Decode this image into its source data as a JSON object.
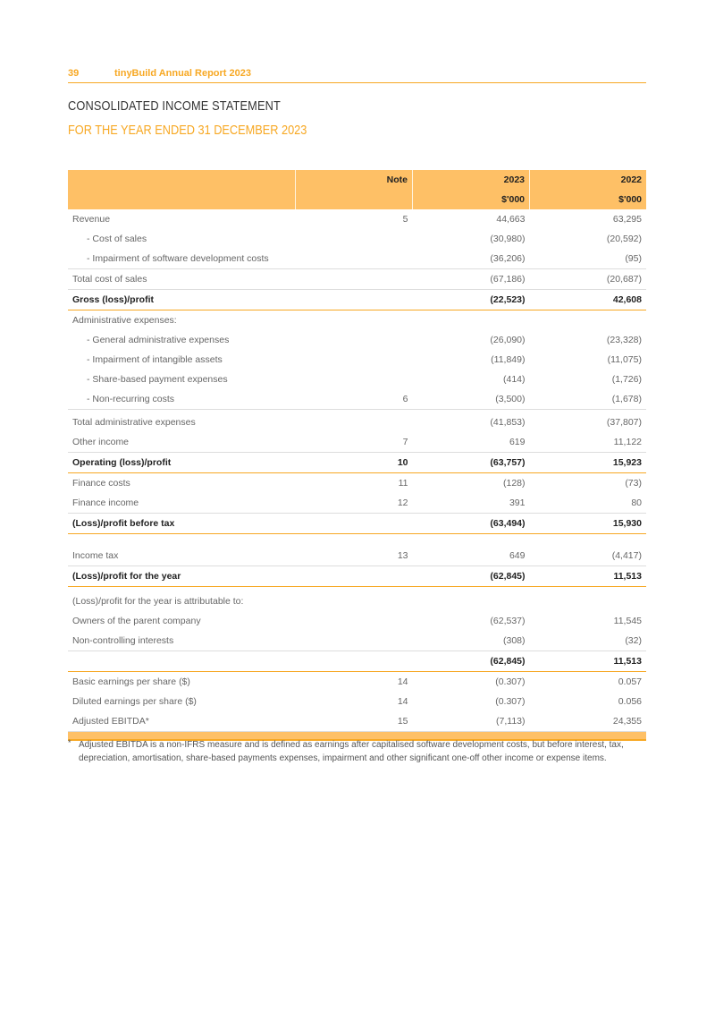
{
  "header": {
    "page_number": "39",
    "report_title": "tinyBuild Annual Report 2023",
    "accent_color": "#f7a823"
  },
  "title": "CONSOLIDATED INCOME STATEMENT",
  "subtitle": "FOR THE YEAR ENDED 31 DECEMBER 2023",
  "table": {
    "columns": {
      "note": "Note",
      "y2023": "2023",
      "y2022": "2022",
      "unit2023": "$'000",
      "unit2022": "$'000"
    },
    "rows": [
      {
        "label": "Revenue",
        "note": "5",
        "y2023": "44,663",
        "y2022": "63,295",
        "cls": ""
      },
      {
        "label": "- Cost of sales",
        "note": "",
        "y2023": "(30,980)",
        "y2022": "(20,592)",
        "cls": "indent"
      },
      {
        "label": "- Impairment of software development costs",
        "note": "",
        "y2023": "(36,206)",
        "y2022": "(95)",
        "cls": "indent"
      },
      {
        "label": "Total cost of sales",
        "note": "",
        "y2023": "(67,186)",
        "y2022": "(20,687)",
        "cls": "above"
      },
      {
        "label": "Gross (loss)/profit",
        "note": "",
        "y2023": "(22,523)",
        "y2022": "42,608",
        "cls": "bold above below"
      },
      {
        "label": "Administrative expenses:",
        "note": "",
        "y2023": "",
        "y2022": "",
        "cls": ""
      },
      {
        "label": "- General administrative expenses",
        "note": "",
        "y2023": "(26,090)",
        "y2022": "(23,328)",
        "cls": "indent"
      },
      {
        "label": "- Impairment of intangible assets",
        "note": "",
        "y2023": "(11,849)",
        "y2022": "(11,075)",
        "cls": "indent"
      },
      {
        "label": "- Share-based payment expenses",
        "note": "",
        "y2023": "(414)",
        "y2022": "(1,726)",
        "cls": "indent"
      },
      {
        "label": "- Non-recurring costs",
        "note": "6",
        "y2023": "(3,500)",
        "y2022": "(1,678)",
        "cls": "indent"
      },
      {
        "label": "Total administrative expenses",
        "note": "",
        "y2023": "(41,853)",
        "y2022": "(37,807)",
        "cls": "above gapb"
      },
      {
        "label": "Other income",
        "note": "7",
        "y2023": "619",
        "y2022": "11,122",
        "cls": ""
      },
      {
        "label": "Operating (loss)/profit",
        "note": "10",
        "y2023": "(63,757)",
        "y2022": "15,923",
        "cls": "bold above below"
      },
      {
        "label": "Finance costs",
        "note": "11",
        "y2023": "(128)",
        "y2022": "(73)",
        "cls": ""
      },
      {
        "label": "Finance income",
        "note": "12",
        "y2023": "391",
        "y2022": "80",
        "cls": ""
      },
      {
        "label": "(Loss)/profit before tax",
        "note": "",
        "y2023": "(63,494)",
        "y2022": "15,930",
        "cls": "bold above below"
      },
      {
        "label": "Income tax",
        "note": "13",
        "y2023": "649",
        "y2022": "(4,417)",
        "cls": "gapl"
      },
      {
        "label": "(Loss)/profit for the year",
        "note": "",
        "y2023": "(62,845)",
        "y2022": "11,513",
        "cls": "bold above below"
      },
      {
        "label": "(Loss)/profit for the year is attributable to:",
        "note": "",
        "y2023": "",
        "y2022": "",
        "cls": "gaps"
      },
      {
        "label": "Owners of the parent company",
        "note": "",
        "y2023": "(62,537)",
        "y2022": "11,545",
        "cls": ""
      },
      {
        "label": "Non-controlling interests",
        "note": "",
        "y2023": "(308)",
        "y2022": "(32)",
        "cls": ""
      },
      {
        "label": "",
        "note": "",
        "y2023": "(62,845)",
        "y2022": "11,513",
        "cls": "bold above below"
      },
      {
        "label": "Basic earnings per share ($)",
        "note": "14",
        "y2023": "(0.307)",
        "y2022": "0.057",
        "cls": ""
      },
      {
        "label": "Diluted earnings per share ($)",
        "note": "14",
        "y2023": "(0.307)",
        "y2022": "0.056",
        "cls": ""
      },
      {
        "label": "Adjusted EBITDA*",
        "note": "15",
        "y2023": "(7,113)",
        "y2022": "24,355",
        "cls": ""
      }
    ]
  },
  "footnote": {
    "marker": "*",
    "text": "Adjusted EBITDA is a non-IFRS measure and is defined as earnings after capitalised software development costs, but before interest, tax, depreciation, amortisation, share-based payments expenses, impairment and other significant one-off other income or expense items."
  }
}
